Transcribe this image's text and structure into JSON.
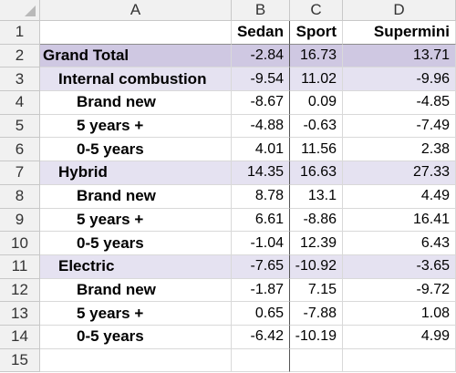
{
  "columns": [
    "A",
    "B",
    "C",
    "D"
  ],
  "row_numbers": [
    "1",
    "2",
    "3",
    "4",
    "5",
    "6",
    "7",
    "8",
    "9",
    "10",
    "11",
    "12",
    "13",
    "14",
    "15"
  ],
  "header_row": {
    "a": "",
    "b": "Sedan",
    "c": "Sport",
    "d": "Supermini"
  },
  "rows": [
    {
      "label": "Grand Total",
      "level": 0,
      "band": "grand",
      "b": "-2.84",
      "c": "16.73",
      "d": "13.71"
    },
    {
      "label": "Internal combustion",
      "level": 1,
      "band": "sub",
      "b": "-9.54",
      "c": "11.02",
      "d": "-9.96"
    },
    {
      "label": "Brand new",
      "level": 2,
      "band": "",
      "b": "-8.67",
      "c": "0.09",
      "d": "-4.85"
    },
    {
      "label": "5 years +",
      "level": 2,
      "band": "",
      "b": "-4.88",
      "c": "-0.63",
      "d": "-7.49"
    },
    {
      "label": "0-5 years",
      "level": 2,
      "band": "",
      "b": "4.01",
      "c": "11.56",
      "d": "2.38"
    },
    {
      "label": "Hybrid",
      "level": 1,
      "band": "sub",
      "b": "14.35",
      "c": "16.63",
      "d": "27.33"
    },
    {
      "label": "Brand new",
      "level": 2,
      "band": "",
      "b": "8.78",
      "c": "13.1",
      "d": "4.49"
    },
    {
      "label": "5 years +",
      "level": 2,
      "band": "",
      "b": "6.61",
      "c": "-8.86",
      "d": "16.41"
    },
    {
      "label": "0-5 years",
      "level": 2,
      "band": "",
      "b": "-1.04",
      "c": "12.39",
      "d": "6.43"
    },
    {
      "label": "Electric",
      "level": 1,
      "band": "sub",
      "b": "-7.65",
      "c": "-10.92",
      "d": "-3.65"
    },
    {
      "label": "Brand new",
      "level": 2,
      "band": "",
      "b": "-1.87",
      "c": "7.15",
      "d": "-9.72"
    },
    {
      "label": "5 years +",
      "level": 2,
      "band": "",
      "b": "0.65",
      "c": "-7.88",
      "d": "1.08"
    },
    {
      "label": "0-5 years",
      "level": 2,
      "band": "",
      "b": "-6.42",
      "c": "-10.19",
      "d": "4.99"
    }
  ],
  "colors": {
    "grand_band": "#cfc8e2",
    "sub_band": "#e5e2f1",
    "header_bg": "#f1f1f1"
  }
}
